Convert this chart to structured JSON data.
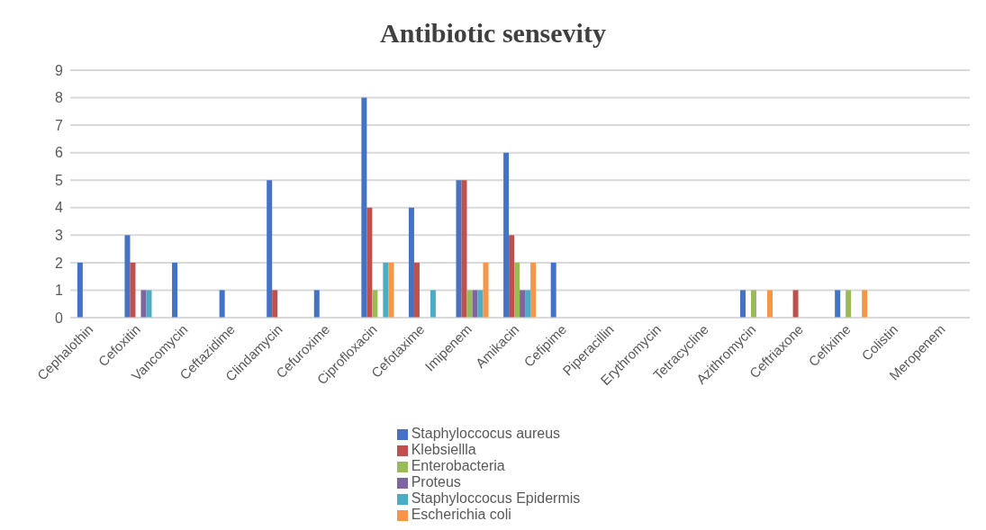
{
  "chart_data": {
    "type": "bar",
    "title": "Antibiotic sensevity",
    "categories": [
      "Cephalothin",
      "Cefoxitin",
      "Vancomycin",
      "Ceftazidime",
      "Clindamycin",
      "Cefuroxime",
      "Ciprofloxacin",
      "Cefotaxime",
      "Imipenem",
      "Amikacin",
      "Cefipime",
      "Piperacillin",
      "Erythromycin",
      "Tetracycline",
      "Azithromycin",
      "Ceftriaxone",
      "Cefixime",
      "Colistin",
      "Meropenem"
    ],
    "series": [
      {
        "name": "Staphyloccocus aureus",
        "color": "#4472c4",
        "values": [
          2,
          3,
          2,
          1,
          5,
          1,
          8,
          4,
          5,
          6,
          2,
          null,
          null,
          null,
          1,
          null,
          1,
          null,
          null
        ]
      },
      {
        "name": "Klebsiellla",
        "color": "#c0504d",
        "values": [
          null,
          2,
          null,
          null,
          1,
          null,
          4,
          2,
          5,
          3,
          null,
          null,
          null,
          null,
          null,
          1,
          null,
          null,
          null
        ]
      },
      {
        "name": "Enterobacteria",
        "color": "#9bbb59",
        "values": [
          null,
          null,
          null,
          null,
          null,
          null,
          1,
          null,
          1,
          2,
          null,
          null,
          null,
          null,
          1,
          null,
          1,
          null,
          null
        ]
      },
      {
        "name": "Proteus",
        "color": "#8064a2",
        "values": [
          null,
          1,
          null,
          null,
          null,
          null,
          null,
          null,
          1,
          1,
          null,
          null,
          null,
          null,
          null,
          null,
          null,
          null,
          null
        ]
      },
      {
        "name": "Staphyloccocus Epidermis",
        "color": "#4bacc6",
        "values": [
          null,
          1,
          null,
          null,
          null,
          null,
          2,
          1,
          1,
          1,
          null,
          null,
          null,
          null,
          null,
          null,
          null,
          null,
          null
        ]
      },
      {
        "name": "Escherichia coli",
        "color": "#f79646",
        "values": [
          null,
          null,
          null,
          null,
          null,
          null,
          2,
          null,
          2,
          2,
          null,
          null,
          null,
          null,
          1,
          null,
          1,
          null,
          null
        ]
      }
    ],
    "ylim": [
      0,
      9
    ],
    "yticks": [
      0,
      1,
      2,
      3,
      4,
      5,
      6,
      7,
      8,
      9
    ],
    "grid": "y",
    "legend": "bottom"
  }
}
